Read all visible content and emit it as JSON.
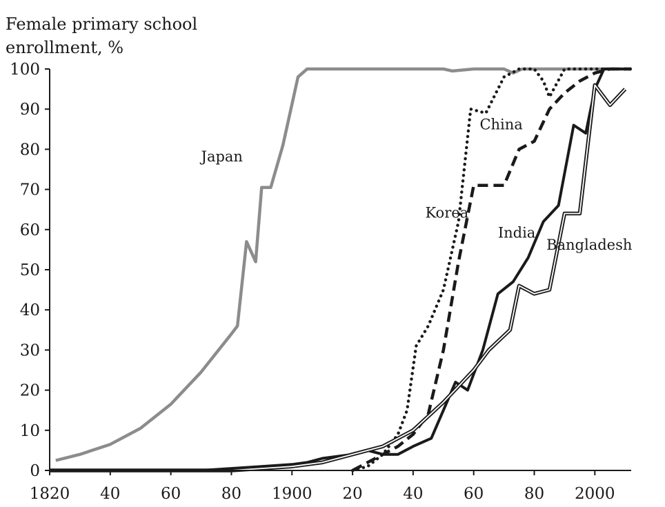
{
  "chart_data": {
    "type": "line",
    "ylabel_line1": "Female primary school",
    "ylabel_line2": "enrollment, %",
    "xlim": [
      1820,
      2012
    ],
    "ylim": [
      0,
      100
    ],
    "x_ticks": [
      {
        "value": 1820,
        "label": "1820"
      },
      {
        "value": 1840,
        "label": "40"
      },
      {
        "value": 1860,
        "label": "60"
      },
      {
        "value": 1880,
        "label": "80"
      },
      {
        "value": 1900,
        "label": "1900"
      },
      {
        "value": 1920,
        "label": "20"
      },
      {
        "value": 1940,
        "label": "40"
      },
      {
        "value": 1960,
        "label": "60"
      },
      {
        "value": 1980,
        "label": "80"
      },
      {
        "value": 2000,
        "label": "2000"
      }
    ],
    "y_ticks": [
      {
        "value": 0,
        "label": "0"
      },
      {
        "value": 10,
        "label": "10"
      },
      {
        "value": 20,
        "label": "20"
      },
      {
        "value": 30,
        "label": "30"
      },
      {
        "value": 40,
        "label": "40"
      },
      {
        "value": 50,
        "label": "50"
      },
      {
        "value": 60,
        "label": "60"
      },
      {
        "value": 70,
        "label": "70"
      },
      {
        "value": 80,
        "label": "80"
      },
      {
        "value": 90,
        "label": "90"
      },
      {
        "value": 100,
        "label": "100"
      }
    ],
    "series": [
      {
        "name": "Japan",
        "color": "#8c8c8c",
        "style": "solid",
        "label_at": [
          1870,
          77
        ],
        "points": [
          [
            1822,
            2.5
          ],
          [
            1830,
            4
          ],
          [
            1840,
            6.5
          ],
          [
            1850,
            10.5
          ],
          [
            1860,
            16.5
          ],
          [
            1870,
            24.5
          ],
          [
            1880,
            34
          ],
          [
            1882,
            36
          ],
          [
            1885,
            57
          ],
          [
            1888,
            52
          ],
          [
            1890,
            70.5
          ],
          [
            1893,
            70.5
          ],
          [
            1897,
            81
          ],
          [
            1902,
            98
          ],
          [
            1905,
            100
          ],
          [
            1950,
            100
          ],
          [
            1953,
            99.5
          ],
          [
            1960,
            100
          ],
          [
            1970,
            100
          ],
          [
            1973,
            99
          ],
          [
            1976,
            100
          ],
          [
            2012,
            100
          ]
        ]
      },
      {
        "name": "Korea",
        "color": "#1a1a1a",
        "style": "dotted",
        "label_at": [
          1944,
          63
        ],
        "points": [
          [
            1920,
            0
          ],
          [
            1925,
            1
          ],
          [
            1930,
            4
          ],
          [
            1935,
            9
          ],
          [
            1938,
            15
          ],
          [
            1941,
            31
          ],
          [
            1945,
            36
          ],
          [
            1950,
            45
          ],
          [
            1955,
            62
          ],
          [
            1959,
            90
          ],
          [
            1964,
            89
          ],
          [
            1970,
            98
          ],
          [
            1975,
            100
          ],
          [
            1980,
            100
          ],
          [
            1983,
            97
          ],
          [
            1985,
            93
          ],
          [
            1990,
            100
          ],
          [
            2012,
            100
          ]
        ]
      },
      {
        "name": "China",
        "color": "#1a1a1a",
        "style": "dashed",
        "label_at": [
          1962,
          85
        ],
        "points": [
          [
            1920,
            0
          ],
          [
            1925,
            2
          ],
          [
            1930,
            4
          ],
          [
            1935,
            6
          ],
          [
            1940,
            9
          ],
          [
            1945,
            14
          ],
          [
            1950,
            30
          ],
          [
            1955,
            52
          ],
          [
            1960,
            71
          ],
          [
            1965,
            71
          ],
          [
            1970,
            71
          ],
          [
            1975,
            80
          ],
          [
            1980,
            82
          ],
          [
            1985,
            90
          ],
          [
            1990,
            94
          ],
          [
            1995,
            97
          ],
          [
            2000,
            99
          ],
          [
            2005,
            100
          ],
          [
            2012,
            100
          ]
        ]
      },
      {
        "name": "India",
        "color": "#1a1a1a",
        "style": "solid-thick",
        "label_at": [
          1968,
          58
        ],
        "points": [
          [
            1820,
            0
          ],
          [
            1870,
            0
          ],
          [
            1880,
            0.5
          ],
          [
            1890,
            1
          ],
          [
            1900,
            1.5
          ],
          [
            1905,
            2
          ],
          [
            1910,
            3
          ],
          [
            1920,
            4
          ],
          [
            1925,
            5
          ],
          [
            1930,
            4
          ],
          [
            1935,
            4
          ],
          [
            1940,
            6
          ],
          [
            1946,
            8
          ],
          [
            1950,
            15
          ],
          [
            1954,
            22
          ],
          [
            1958,
            20
          ],
          [
            1963,
            30
          ],
          [
            1968,
            44
          ],
          [
            1973,
            47
          ],
          [
            1978,
            53
          ],
          [
            1983,
            62
          ],
          [
            1988,
            66
          ],
          [
            1993,
            86
          ],
          [
            1997,
            84
          ],
          [
            2000,
            95
          ],
          [
            2003,
            100
          ],
          [
            2012,
            100
          ]
        ]
      },
      {
        "name": "Bangladesh",
        "color": "#1a1a1a",
        "style": "double",
        "label_at": [
          1984,
          55
        ],
        "points": [
          [
            1820,
            0
          ],
          [
            1880,
            0
          ],
          [
            1890,
            0.5
          ],
          [
            1900,
            1
          ],
          [
            1910,
            2
          ],
          [
            1920,
            4
          ],
          [
            1930,
            6
          ],
          [
            1940,
            10
          ],
          [
            1950,
            17
          ],
          [
            1960,
            25
          ],
          [
            1965,
            30
          ],
          [
            1972,
            35
          ],
          [
            1975,
            46
          ],
          [
            1980,
            44
          ],
          [
            1985,
            45
          ],
          [
            1990,
            64
          ],
          [
            1995,
            64
          ],
          [
            2000,
            96
          ],
          [
            2005,
            91
          ],
          [
            2010,
            95
          ]
        ]
      }
    ]
  }
}
